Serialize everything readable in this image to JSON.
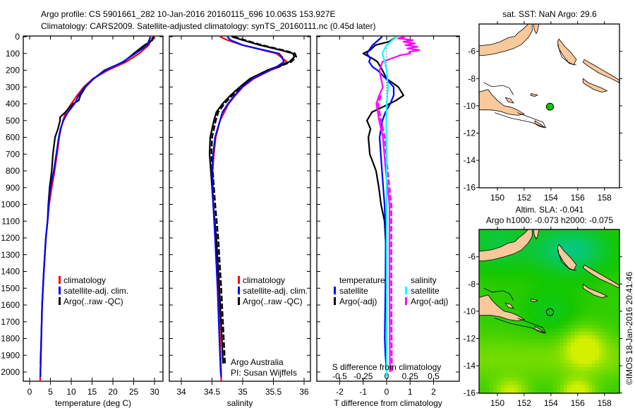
{
  "header": {
    "title_line1": "Argo profile: CS 5901661_282 10-Jan-2016 20160115_696 10.063S 153.927E",
    "title_line2": "Climatology: CARS2009. Satellite-adjusted climatology: synTS_20160111.nc (0.45d later)"
  },
  "colors": {
    "climatology": "#ff0000",
    "satellite": "#0000ff",
    "argo": "#000000",
    "sal_sat": "#00ffff",
    "sal_argo": "#ff00ff",
    "land": "#f9c89b",
    "float_marker": "#00cc00"
  },
  "credits": {
    "line1": "Argo Australia",
    "line2": "PI: Susan Wijffels",
    "stamp": "©IMOS 18-Jan-2016 20:41:46"
  },
  "chart_data": [
    {
      "type": "line",
      "id": "temperature",
      "xlabel": "temperature (deg C)",
      "ylabel": "pressure (dbar)",
      "xlim": [
        -1.5,
        32
      ],
      "ylim": [
        2055,
        0
      ],
      "xticks": [
        "0",
        "5",
        "10",
        "15",
        "20",
        "25",
        "30"
      ],
      "yticks": [
        "0",
        "100",
        "200",
        "300",
        "400",
        "500",
        "600",
        "700",
        "800",
        "900",
        "1000",
        "1100",
        "1200",
        "1300",
        "1400",
        "1500",
        "1600",
        "1700",
        "1800",
        "1900",
        "2000"
      ],
      "legend": [
        "climatology",
        "satellite-adj. clim.",
        "Argo(..raw -QC)"
      ],
      "series": [
        {
          "name": "climatology",
          "color": "#ff0000",
          "depth": [
            0,
            50,
            100,
            150,
            200,
            250,
            300,
            350,
            400,
            450,
            500,
            550,
            600,
            700,
            800,
            900,
            1000,
            1100,
            1200,
            1400,
            1600,
            1800,
            2000,
            2055
          ],
          "value": [
            29.6,
            28.6,
            26.3,
            23.2,
            18.8,
            15.2,
            13.0,
            11.4,
            10.0,
            8.7,
            8.0,
            7.5,
            7.1,
            6.6,
            6.0,
            5.3,
            4.7,
            4.3,
            3.9,
            3.4,
            3.0,
            2.8,
            2.6,
            2.5
          ]
        },
        {
          "name": "satellite-adj. clim.",
          "color": "#0000ff",
          "depth": [
            0,
            50,
            100,
            150,
            200,
            250,
            300,
            350,
            400,
            450,
            500,
            550,
            600,
            700,
            800,
            900,
            1000,
            1100,
            1200,
            1400,
            1600,
            1800,
            2000,
            2030
          ],
          "value": [
            29.0,
            28.3,
            25.4,
            22.4,
            18.3,
            15.4,
            13.2,
            11.8,
            10.8,
            9.2,
            8.1,
            7.4,
            7.0,
            6.4,
            5.8,
            5.0,
            4.6,
            4.3,
            3.9,
            3.4,
            3.0,
            2.8,
            2.6,
            2.6
          ]
        },
        {
          "name": "Argo(..raw -QC)",
          "color": "#000000",
          "depth": [
            0,
            20,
            50,
            100,
            150,
            200,
            250,
            300,
            350,
            380,
            400,
            450,
            480,
            500,
            550,
            600,
            700,
            800,
            900,
            1000,
            1100,
            1200,
            1400,
            1600,
            1800,
            1950
          ],
          "value": [
            29.8,
            29.5,
            27.6,
            25.0,
            22.6,
            18.0,
            15.4,
            13.4,
            12.2,
            11.8,
            10.4,
            8.6,
            7.3,
            7.3,
            6.8,
            6.1,
            5.6,
            5.3,
            4.8,
            4.5,
            4.3,
            3.9,
            3.4,
            3.0,
            2.8,
            2.6
          ]
        }
      ]
    },
    {
      "type": "line",
      "id": "salinity",
      "xlabel": "salinity",
      "xlim": [
        33.8,
        36.1
      ],
      "ylim": [
        2055,
        0
      ],
      "xticks": [
        "34",
        "34.5",
        "35",
        "35.5",
        "36"
      ],
      "legend": [
        "climatology",
        "satellite-adj. clim.",
        "Argo(..raw -QC)"
      ],
      "series": [
        {
          "name": "climatology",
          "color": "#ff0000",
          "depth": [
            0,
            20,
            50,
            100,
            150,
            180,
            200,
            250,
            300,
            350,
            400,
            450,
            500,
            600,
            700,
            800,
            1000,
            1200,
            1500,
            1800,
            2000,
            2055
          ],
          "value": [
            34.63,
            34.75,
            35.0,
            35.55,
            35.72,
            35.6,
            35.45,
            35.18,
            35.0,
            34.88,
            34.77,
            34.7,
            34.63,
            34.56,
            34.53,
            34.51,
            34.52,
            34.56,
            34.6,
            34.63,
            34.65,
            34.65
          ]
        },
        {
          "name": "satellite-adj. clim.",
          "color": "#0000ff",
          "depth": [
            0,
            20,
            50,
            100,
            120,
            150,
            180,
            200,
            250,
            300,
            350,
            400,
            450,
            500,
            600,
            700,
            800,
            1000,
            1200,
            1500,
            1800,
            2000,
            2030
          ],
          "value": [
            34.75,
            34.8,
            35.0,
            35.59,
            35.64,
            35.67,
            35.55,
            35.44,
            35.16,
            34.99,
            34.87,
            34.76,
            34.67,
            34.63,
            34.55,
            34.52,
            34.5,
            34.52,
            34.55,
            34.59,
            34.62,
            34.64,
            34.65
          ]
        },
        {
          "name": "Argo(..raw -QC)",
          "color": "#000000",
          "depth": [
            0,
            20,
            50,
            80,
            100,
            120,
            150,
            200,
            250,
            300,
            350,
            400,
            450,
            500,
            600,
            700,
            800,
            1000,
            1200,
            1500,
            1800,
            1950
          ],
          "value": [
            34.82,
            35.0,
            35.28,
            35.62,
            35.82,
            35.84,
            35.76,
            35.4,
            35.12,
            34.95,
            34.8,
            34.67,
            34.57,
            34.53,
            34.47,
            34.46,
            34.48,
            34.52,
            34.57,
            34.62,
            34.66,
            34.68
          ]
        }
      ]
    },
    {
      "type": "line",
      "id": "difference",
      "xlabel": "T difference from climatology",
      "x2label": "S difference from climatology",
      "xlim": [
        -2.98,
        3.1
      ],
      "x2lim": [
        -0.745,
        0.775
      ],
      "ylim": [
        2055,
        0
      ],
      "xticks": [
        "-2",
        "-1",
        "0",
        "1",
        "2"
      ],
      "x2ticks": [
        "-0.5",
        "-0.25",
        "0",
        "0.25",
        "0.5"
      ],
      "legend_titles": [
        "temperature",
        "salinity"
      ],
      "legend": [
        "satellite",
        "Argo(-adj)",
        "satellite",
        "Argo(-adj)"
      ],
      "series": [
        {
          "name": "temperature satellite",
          "quantity": "T",
          "color": "#0000ff",
          "depth": [
            0,
            50,
            80,
            100,
            130,
            150,
            180,
            200,
            250,
            300,
            350,
            400,
            450,
            500,
            600,
            800,
            1000,
            1200,
            1500,
            1800,
            1900,
            2000
          ],
          "value": [
            -0.19,
            -0.6,
            -0.75,
            -0.84,
            -0.7,
            -0.75,
            -0.6,
            -0.39,
            -0.03,
            0.3,
            0.3,
            0.15,
            -0.05,
            -0.18,
            -0.3,
            -0.2,
            -0.09,
            -0.04,
            -0.05,
            -0.08,
            -0.05,
            0
          ]
        },
        {
          "name": "temperature Argo(-adj)",
          "quantity": "T",
          "color": "#000000",
          "depth": [
            0,
            30,
            50,
            80,
            100,
            130,
            150,
            200,
            250,
            300,
            350,
            380,
            400,
            450,
            500,
            550,
            600,
            700,
            800,
            900,
            1000,
            1100,
            1200,
            1300
          ],
          "value": [
            0.42,
            0.1,
            -0.48,
            -0.7,
            -1.0,
            -0.6,
            -0.39,
            -0.18,
            0,
            0.5,
            0.72,
            0.4,
            0.12,
            -0.63,
            -0.84,
            -0.69,
            -0.78,
            -0.72,
            -0.45,
            -0.33,
            -0.24,
            -0.09,
            -0.05,
            0.0
          ]
        },
        {
          "name": "salinity satellite",
          "quantity": "S",
          "color": "#00ffff",
          "depth": [
            0,
            20,
            50,
            80,
            100,
            150,
            200,
            300,
            400,
            500,
            700,
            1000,
            1500,
            2000,
            2030
          ],
          "value": [
            0.105,
            0.06,
            0.0,
            -0.03,
            -0.045,
            -0.02,
            0.0,
            0.015,
            0.0,
            -0.005,
            0.0,
            0.0,
            0.0,
            0.0,
            0.0
          ]
        },
        {
          "name": "salinity Argo(-adj)",
          "quantity": "S",
          "color": "#ff00ff",
          "depth": [
            0,
            10,
            20,
            30,
            40,
            50,
            60,
            70,
            80,
            90,
            100,
            110,
            130,
            150,
            200,
            250,
            300,
            350,
            400,
            500,
            600,
            800,
            1000,
            1500,
            2000
          ],
          "value": [
            0.2,
            0.12,
            0.28,
            0.18,
            0.3,
            0.2,
            0.33,
            0.22,
            0.35,
            0.24,
            0.25,
            0.15,
            0.05,
            -0.045,
            -0.075,
            -0.06,
            -0.04,
            -0.08,
            -0.11,
            -0.08,
            -0.04,
            -0.01,
            0.03,
            0.03,
            0.035
          ]
        }
      ]
    },
    {
      "type": "map",
      "id": "sst-map",
      "title": "sat. SST: NaN Argo: 29.6",
      "xlim": [
        148.63,
        159.07
      ],
      "ylim": [
        -16.05,
        -4.0
      ],
      "xticks": [
        "150",
        "152",
        "154",
        "156",
        "158"
      ],
      "yticks": [
        "-6",
        "-8",
        "-10",
        "-12",
        "-14",
        "-16"
      ],
      "float_position": {
        "lon": 153.927,
        "lat": -10.063
      }
    },
    {
      "type": "heatmap",
      "id": "sla-map",
      "title_line1": "Altim. SLA: -0.041",
      "title_line2": "Argo h1000: -0.073 h2000: -0.075",
      "xlim": [
        148.63,
        159.07
      ],
      "ylim": [
        -16.05,
        -4.0
      ],
      "xticks": [
        "150",
        "152",
        "154",
        "156",
        "158"
      ],
      "yticks": [
        "-6",
        "-8",
        "-10",
        "-12",
        "-14",
        "-16"
      ],
      "float_position": {
        "lon": 153.927,
        "lat": -10.063
      }
    }
  ],
  "coastlines": [
    [
      [
        148.6,
        -5.6
      ],
      [
        149.5,
        -5.5
      ],
      [
        150.2,
        -5.3
      ],
      [
        150.8,
        -5.0
      ],
      [
        151.3,
        -4.9
      ],
      [
        151.6,
        -4.6
      ],
      [
        152.0,
        -4.3
      ],
      [
        152.3,
        -4.0
      ],
      [
        152.6,
        -4.0
      ],
      [
        152.6,
        -4.5
      ],
      [
        152.3,
        -5.0
      ],
      [
        151.8,
        -5.5
      ],
      [
        151.2,
        -5.8
      ],
      [
        150.5,
        -6.0
      ],
      [
        149.7,
        -6.2
      ],
      [
        149.0,
        -6.3
      ],
      [
        148.6,
        -6.3
      ]
    ],
    [
      [
        152.7,
        -4.0
      ],
      [
        153.1,
        -4.0
      ],
      [
        153.0,
        -4.5
      ],
      [
        152.9,
        -4.7
      ],
      [
        152.75,
        -4.4
      ]
    ],
    [
      [
        154.6,
        -5.1
      ],
      [
        155.0,
        -5.6
      ],
      [
        155.5,
        -6.1
      ],
      [
        155.9,
        -6.6
      ],
      [
        155.7,
        -7.0
      ],
      [
        155.3,
        -6.8
      ],
      [
        154.9,
        -6.3
      ],
      [
        154.6,
        -5.8
      ],
      [
        154.5,
        -5.3
      ]
    ],
    [
      [
        156.5,
        -6.6
      ],
      [
        157.2,
        -7.0
      ],
      [
        157.9,
        -7.4
      ],
      [
        158.6,
        -7.8
      ],
      [
        159.1,
        -8.1
      ],
      [
        159.1,
        -8.3
      ],
      [
        158.5,
        -8.0
      ],
      [
        157.6,
        -7.6
      ],
      [
        156.8,
        -7.1
      ],
      [
        156.4,
        -6.8
      ]
    ],
    [
      [
        156.4,
        -8.0
      ],
      [
        156.8,
        -8.3
      ],
      [
        157.3,
        -8.5
      ],
      [
        157.8,
        -8.7
      ],
      [
        158.2,
        -8.9
      ],
      [
        157.8,
        -9.0
      ],
      [
        157.2,
        -8.8
      ],
      [
        156.7,
        -8.5
      ],
      [
        156.4,
        -8.3
      ]
    ],
    [
      [
        148.6,
        -9.0
      ],
      [
        149.3,
        -8.8
      ],
      [
        149.6,
        -9.2
      ],
      [
        150.0,
        -9.6
      ],
      [
        150.5,
        -10.0
      ],
      [
        151.0,
        -10.1
      ],
      [
        151.5,
        -10.3
      ],
      [
        152.0,
        -10.6
      ],
      [
        151.5,
        -10.7
      ],
      [
        150.8,
        -10.6
      ],
      [
        150.2,
        -10.4
      ],
      [
        149.5,
        -10.3
      ],
      [
        148.6,
        -10.3
      ]
    ],
    [
      [
        150.6,
        -9.4
      ],
      [
        151.0,
        -9.5
      ],
      [
        151.2,
        -9.8
      ],
      [
        150.8,
        -9.7
      ]
    ],
    [
      [
        152.5,
        -9.1
      ],
      [
        153.0,
        -9.2
      ],
      [
        152.8,
        -9.3
      ],
      [
        152.5,
        -9.25
      ]
    ],
    [
      [
        152.8,
        -11.1
      ],
      [
        153.3,
        -11.4
      ],
      [
        153.5,
        -11.6
      ],
      [
        153.1,
        -11.5
      ],
      [
        152.8,
        -11.3
      ]
    ]
  ],
  "reefs": [
    [
      [
        149.8,
        -10.5
      ],
      [
        151.0,
        -10.9
      ],
      [
        152.5,
        -11.2
      ],
      [
        153.6,
        -11.6
      ],
      [
        153.4,
        -11.2
      ],
      [
        152.3,
        -10.8
      ],
      [
        151.5,
        -10.5
      ]
    ],
    [
      [
        154.5,
        -5.5
      ],
      [
        154.8,
        -6.4
      ],
      [
        155.4,
        -6.9
      ],
      [
        155.9,
        -7.0
      ]
    ],
    [
      [
        149.0,
        -8.3
      ],
      [
        149.6,
        -8.6
      ],
      [
        150.4,
        -8.5
      ],
      [
        150.9,
        -8.7
      ],
      [
        151.2,
        -9.2
      ]
    ]
  ]
}
